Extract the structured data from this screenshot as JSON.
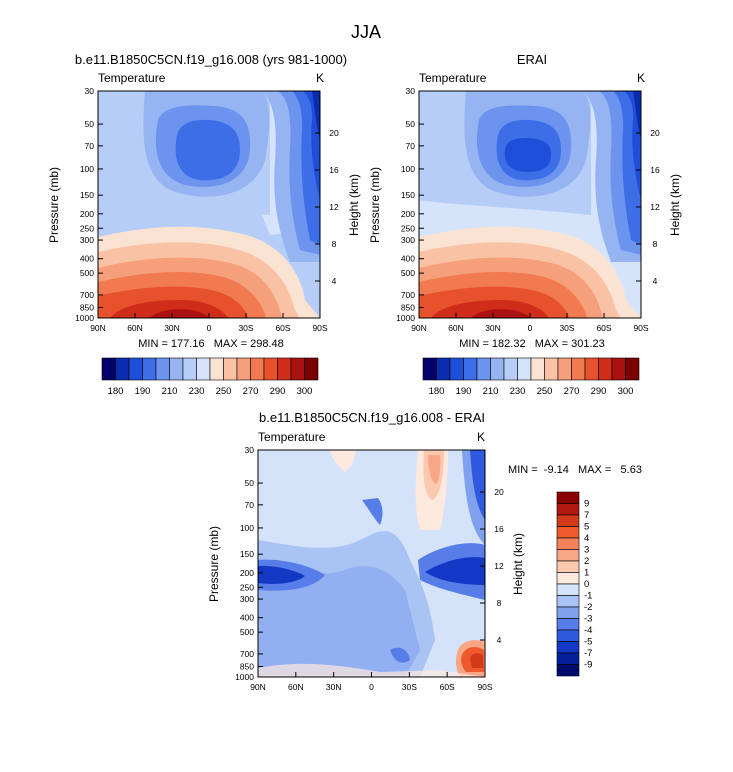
{
  "page_title": "JJA",
  "chart_data": [
    {
      "type": "heatmap",
      "title": "b.e11.B1850C5CN.f19_g16.008 (yrs 981-1000)",
      "left_label": "Temperature",
      "units": "K",
      "ylabel": "Pressure (mb)",
      "right_ylabel": "Height (km)",
      "x_ticks": [
        "90N",
        "60N",
        "30N",
        "0",
        "30S",
        "60S",
        "90S"
      ],
      "p_ticks": [
        "30",
        "50",
        "70",
        "100",
        "150",
        "200",
        "250",
        "300",
        "400",
        "500",
        "700",
        "850",
        "1000"
      ],
      "p_values": [
        30,
        50,
        70,
        100,
        150,
        200,
        250,
        300,
        400,
        500,
        700,
        850,
        1000
      ],
      "height_ticks": [
        "4",
        "8",
        "12",
        "16",
        "20"
      ],
      "height_values": [
        4,
        8,
        12,
        16,
        20
      ],
      "stats": "MIN = 177.16   MAX = 298.48",
      "min": 177.16,
      "max": 298.48
    },
    {
      "type": "heatmap",
      "title": "ERAI",
      "left_label": "Temperature",
      "units": "K",
      "ylabel": "Pressure (mb)",
      "right_ylabel": "Height (km)",
      "x_ticks": [
        "90N",
        "60N",
        "30N",
        "0",
        "30S",
        "60S",
        "90S"
      ],
      "p_ticks": [
        "30",
        "50",
        "70",
        "100",
        "150",
        "200",
        "250",
        "300",
        "400",
        "500",
        "700",
        "850",
        "1000"
      ],
      "p_values": [
        30,
        50,
        70,
        100,
        150,
        200,
        250,
        300,
        400,
        500,
        700,
        850,
        1000
      ],
      "height_ticks": [
        "4",
        "8",
        "12",
        "16",
        "20"
      ],
      "height_values": [
        4,
        8,
        12,
        16,
        20
      ],
      "stats": "MIN = 182.32   MAX = 301.23",
      "min": 182.32,
      "max": 301.23
    },
    {
      "type": "heatmap",
      "title": "b.e11.B1850C5CN.f19_g16.008 - ERAI",
      "left_label": "Temperature",
      "units": "K",
      "ylabel": "Pressure (mb)",
      "right_ylabel": "Height (km)",
      "x_ticks": [
        "90N",
        "60N",
        "30N",
        "0",
        "30S",
        "60S",
        "90S"
      ],
      "p_ticks": [
        "30",
        "50",
        "70",
        "100",
        "150",
        "200",
        "250",
        "300",
        "400",
        "500",
        "700",
        "850",
        "1000"
      ],
      "p_values": [
        30,
        50,
        70,
        100,
        150,
        200,
        250,
        300,
        400,
        500,
        700,
        850,
        1000
      ],
      "height_ticks": [
        "4",
        "8",
        "12",
        "16",
        "20"
      ],
      "height_values": [
        4,
        8,
        12,
        16,
        20
      ],
      "stats": "MIN =  -9.14   MAX =   5.63",
      "min": -9.14,
      "max": 5.63
    }
  ],
  "colorbars": {
    "absolute": {
      "labels": [
        "180",
        "190",
        "210",
        "230",
        "250",
        "270",
        "290",
        "300"
      ],
      "colors": [
        "#02026a",
        "#0a2db0",
        "#1f4fd8",
        "#3d6ee8",
        "#6c94ef",
        "#96b4f2",
        "#b6cdf8",
        "#d6e4fb",
        "#fbe3d3",
        "#f9c2a5",
        "#f6a07b",
        "#f17a50",
        "#e7522d",
        "#d02c1a",
        "#aa1111",
        "#7d0000"
      ]
    },
    "difference": {
      "labels": [
        "9",
        "7",
        "5",
        "4",
        "3",
        "2",
        "1",
        "0",
        "-1",
        "-2",
        "-3",
        "-4",
        "-5",
        "-7",
        "-9"
      ],
      "colors": [
        "#8b0000",
        "#b01a10",
        "#d33a1c",
        "#ee5a2e",
        "#f5825a",
        "#f8a686",
        "#fbc9b0",
        "#fde9de",
        "#d4e2fa",
        "#a9c3f4",
        "#7fa1ee",
        "#577ee8",
        "#2f5ae0",
        "#1438c6",
        "#051e9a",
        "#000a6a"
      ]
    }
  }
}
